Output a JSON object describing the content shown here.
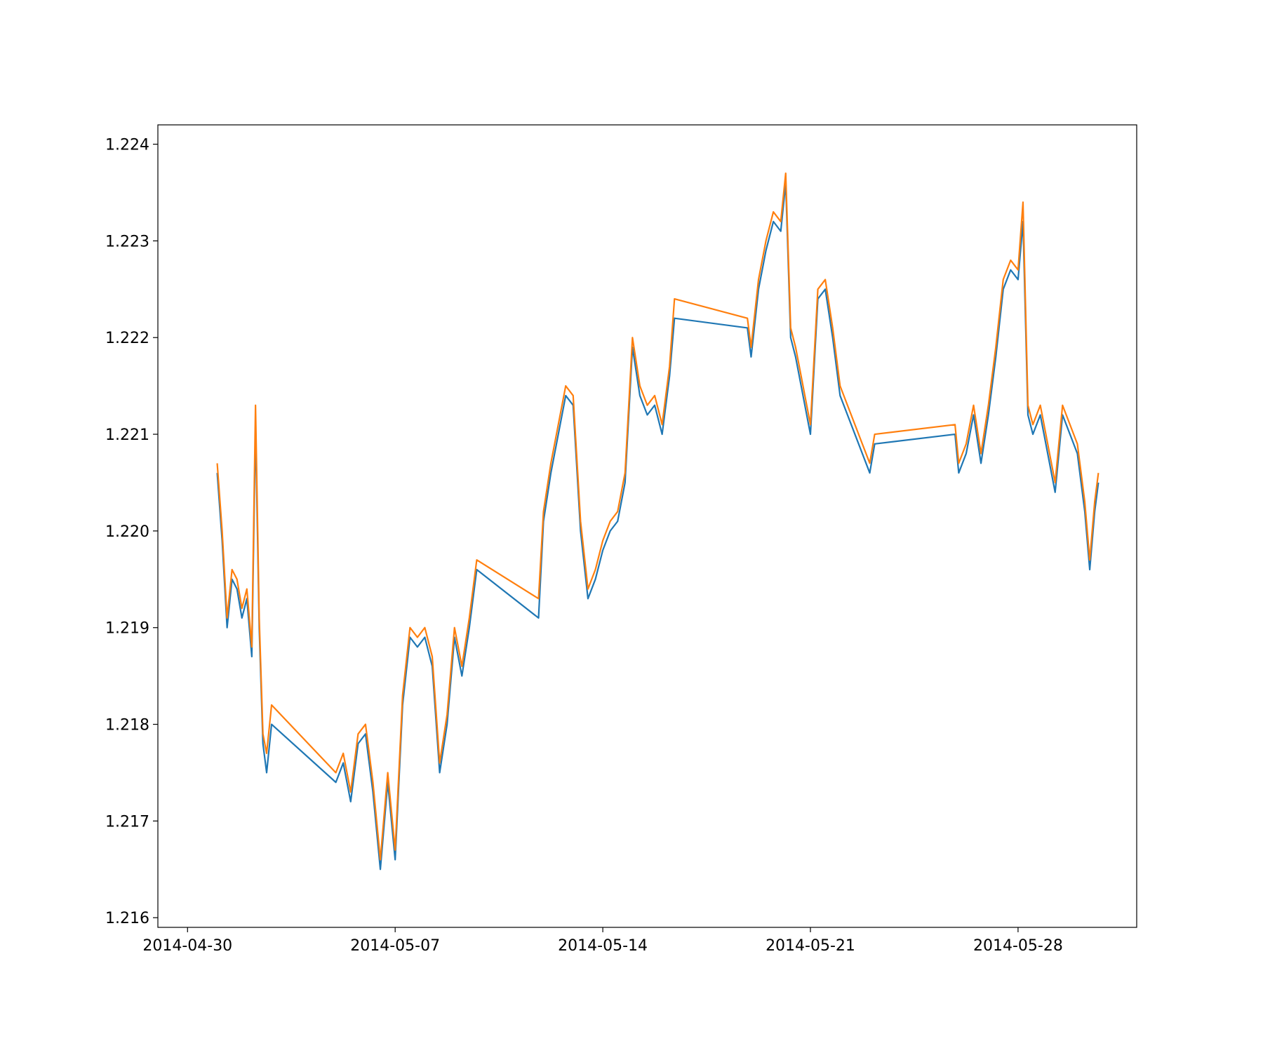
{
  "chart_data": {
    "type": "line",
    "title": "",
    "xlabel": "",
    "ylabel": "",
    "x_range": [
      "2014-04-29",
      "2014-06-01"
    ],
    "ylim": [
      1.2159,
      1.2242
    ],
    "x_ticks": [
      "2014-04-30",
      "2014-05-07",
      "2014-05-14",
      "2014-05-21",
      "2014-05-28"
    ],
    "y_ticks": [
      "1.216",
      "1.217",
      "1.218",
      "1.219",
      "1.220",
      "1.221",
      "1.222",
      "1.223",
      "1.224"
    ],
    "grid": false,
    "legend": "none",
    "series": [
      {
        "color": "#1f77b4",
        "points": [
          [
            "2014-05-01T00:00",
            1.2206
          ],
          [
            "2014-05-01T04:00",
            1.2199
          ],
          [
            "2014-05-01T08:00",
            1.219
          ],
          [
            "2014-05-01T12:00",
            1.2195
          ],
          [
            "2014-05-01T16:00",
            1.2194
          ],
          [
            "2014-05-01T20:00",
            1.2191
          ],
          [
            "2014-05-02T00:00",
            1.2193
          ],
          [
            "2014-05-02T04:00",
            1.2187
          ],
          [
            "2014-05-02T07:00",
            1.2211
          ],
          [
            "2014-05-02T10:00",
            1.219
          ],
          [
            "2014-05-02T13:00",
            1.2178
          ],
          [
            "2014-05-02T16:00",
            1.2175
          ],
          [
            "2014-05-02T20:00",
            1.218
          ],
          [
            "2014-05-05T00:00",
            1.2174
          ],
          [
            "2014-05-05T06:00",
            1.2176
          ],
          [
            "2014-05-05T12:00",
            1.2172
          ],
          [
            "2014-05-05T18:00",
            1.2178
          ],
          [
            "2014-05-06T00:00",
            1.2179
          ],
          [
            "2014-05-06T06:00",
            1.2173
          ],
          [
            "2014-05-06T12:00",
            1.2165
          ],
          [
            "2014-05-06T18:00",
            1.2174
          ],
          [
            "2014-05-07T00:00",
            1.2166
          ],
          [
            "2014-05-07T06:00",
            1.2182
          ],
          [
            "2014-05-07T12:00",
            1.2189
          ],
          [
            "2014-05-07T18:00",
            1.2188
          ],
          [
            "2014-05-08T00:00",
            1.2189
          ],
          [
            "2014-05-08T06:00",
            1.2186
          ],
          [
            "2014-05-08T12:00",
            1.2175
          ],
          [
            "2014-05-08T18:00",
            1.218
          ],
          [
            "2014-05-09T00:00",
            1.2189
          ],
          [
            "2014-05-09T06:00",
            1.2185
          ],
          [
            "2014-05-09T12:00",
            1.219
          ],
          [
            "2014-05-09T18:00",
            1.2196
          ],
          [
            "2014-05-11T20:00",
            1.2191
          ],
          [
            "2014-05-12T00:00",
            1.2201
          ],
          [
            "2014-05-12T06:00",
            1.2206
          ],
          [
            "2014-05-12T12:00",
            1.221
          ],
          [
            "2014-05-12T18:00",
            1.2214
          ],
          [
            "2014-05-13T00:00",
            1.2213
          ],
          [
            "2014-05-13T06:00",
            1.22
          ],
          [
            "2014-05-13T12:00",
            1.2193
          ],
          [
            "2014-05-13T18:00",
            1.2195
          ],
          [
            "2014-05-14T00:00",
            1.2198
          ],
          [
            "2014-05-14T06:00",
            1.22
          ],
          [
            "2014-05-14T12:00",
            1.2201
          ],
          [
            "2014-05-14T18:00",
            1.2205
          ],
          [
            "2014-05-15T00:00",
            1.2219
          ],
          [
            "2014-05-15T06:00",
            1.2214
          ],
          [
            "2014-05-15T12:00",
            1.2212
          ],
          [
            "2014-05-15T18:00",
            1.2213
          ],
          [
            "2014-05-16T00:00",
            1.221
          ],
          [
            "2014-05-16T06:00",
            1.2216
          ],
          [
            "2014-05-16T10:00",
            1.2222
          ],
          [
            "2014-05-18T21:00",
            1.2221
          ],
          [
            "2014-05-19T00:00",
            1.2218
          ],
          [
            "2014-05-19T06:00",
            1.2225
          ],
          [
            "2014-05-19T12:00",
            1.2229
          ],
          [
            "2014-05-19T18:00",
            1.2232
          ],
          [
            "2014-05-20T00:00",
            1.2231
          ],
          [
            "2014-05-20T04:00",
            1.2236
          ],
          [
            "2014-05-20T08:00",
            1.222
          ],
          [
            "2014-05-20T12:00",
            1.2218
          ],
          [
            "2014-05-20T18:00",
            1.2214
          ],
          [
            "2014-05-21T00:00",
            1.221
          ],
          [
            "2014-05-21T06:00",
            1.2224
          ],
          [
            "2014-05-21T12:00",
            1.2225
          ],
          [
            "2014-05-21T18:00",
            1.222
          ],
          [
            "2014-05-22T00:00",
            1.2214
          ],
          [
            "2014-05-22T06:00",
            1.2212
          ],
          [
            "2014-05-22T12:00",
            1.221
          ],
          [
            "2014-05-22T18:00",
            1.2208
          ],
          [
            "2014-05-23T00:00",
            1.2206
          ],
          [
            "2014-05-23T04:00",
            1.2209
          ],
          [
            "2014-05-25T21:00",
            1.221
          ],
          [
            "2014-05-26T00:00",
            1.2206
          ],
          [
            "2014-05-26T06:00",
            1.2208
          ],
          [
            "2014-05-26T12:00",
            1.2212
          ],
          [
            "2014-05-26T18:00",
            1.2207
          ],
          [
            "2014-05-27T00:00",
            1.2212
          ],
          [
            "2014-05-27T06:00",
            1.2218
          ],
          [
            "2014-05-27T12:00",
            1.2225
          ],
          [
            "2014-05-27T18:00",
            1.2227
          ],
          [
            "2014-05-28T00:00",
            1.2226
          ],
          [
            "2014-05-28T04:00",
            1.2232
          ],
          [
            "2014-05-28T08:00",
            1.2212
          ],
          [
            "2014-05-28T12:00",
            1.221
          ],
          [
            "2014-05-28T18:00",
            1.2212
          ],
          [
            "2014-05-29T00:00",
            1.2208
          ],
          [
            "2014-05-29T06:00",
            1.2204
          ],
          [
            "2014-05-29T12:00",
            1.2212
          ],
          [
            "2014-05-29T18:00",
            1.221
          ],
          [
            "2014-05-30T00:00",
            1.2208
          ],
          [
            "2014-05-30T06:00",
            1.2202
          ],
          [
            "2014-05-30T10:00",
            1.2196
          ],
          [
            "2014-05-30T14:00",
            1.2202
          ],
          [
            "2014-05-30T17:00",
            1.2205
          ]
        ]
      },
      {
        "color": "#ff7f0e",
        "points": [
          [
            "2014-05-01T00:00",
            1.2207
          ],
          [
            "2014-05-01T04:00",
            1.22
          ],
          [
            "2014-05-01T08:00",
            1.2191
          ],
          [
            "2014-05-01T12:00",
            1.2196
          ],
          [
            "2014-05-01T16:00",
            1.2195
          ],
          [
            "2014-05-01T20:00",
            1.2192
          ],
          [
            "2014-05-02T00:00",
            1.2194
          ],
          [
            "2014-05-02T04:00",
            1.2188
          ],
          [
            "2014-05-02T07:00",
            1.2213
          ],
          [
            "2014-05-02T10:00",
            1.2191
          ],
          [
            "2014-05-02T13:00",
            1.2179
          ],
          [
            "2014-05-02T16:00",
            1.2177
          ],
          [
            "2014-05-02T20:00",
            1.2182
          ],
          [
            "2014-05-05T00:00",
            1.2175
          ],
          [
            "2014-05-05T06:00",
            1.2177
          ],
          [
            "2014-05-05T12:00",
            1.2173
          ],
          [
            "2014-05-05T18:00",
            1.2179
          ],
          [
            "2014-05-06T00:00",
            1.218
          ],
          [
            "2014-05-06T06:00",
            1.2174
          ],
          [
            "2014-05-06T12:00",
            1.2166
          ],
          [
            "2014-05-06T18:00",
            1.2175
          ],
          [
            "2014-05-07T00:00",
            1.2167
          ],
          [
            "2014-05-07T06:00",
            1.2183
          ],
          [
            "2014-05-07T12:00",
            1.219
          ],
          [
            "2014-05-07T18:00",
            1.2189
          ],
          [
            "2014-05-08T00:00",
            1.219
          ],
          [
            "2014-05-08T06:00",
            1.2187
          ],
          [
            "2014-05-08T12:00",
            1.2176
          ],
          [
            "2014-05-08T18:00",
            1.2181
          ],
          [
            "2014-05-09T00:00",
            1.219
          ],
          [
            "2014-05-09T06:00",
            1.2186
          ],
          [
            "2014-05-09T12:00",
            1.2191
          ],
          [
            "2014-05-09T18:00",
            1.2197
          ],
          [
            "2014-05-11T20:00",
            1.2193
          ],
          [
            "2014-05-12T00:00",
            1.2202
          ],
          [
            "2014-05-12T06:00",
            1.2207
          ],
          [
            "2014-05-12T12:00",
            1.2211
          ],
          [
            "2014-05-12T18:00",
            1.2215
          ],
          [
            "2014-05-13T00:00",
            1.2214
          ],
          [
            "2014-05-13T06:00",
            1.2201
          ],
          [
            "2014-05-13T12:00",
            1.2194
          ],
          [
            "2014-05-13T18:00",
            1.2196
          ],
          [
            "2014-05-14T00:00",
            1.2199
          ],
          [
            "2014-05-14T06:00",
            1.2201
          ],
          [
            "2014-05-14T12:00",
            1.2202
          ],
          [
            "2014-05-14T18:00",
            1.2206
          ],
          [
            "2014-05-15T00:00",
            1.222
          ],
          [
            "2014-05-15T06:00",
            1.2215
          ],
          [
            "2014-05-15T12:00",
            1.2213
          ],
          [
            "2014-05-15T18:00",
            1.2214
          ],
          [
            "2014-05-16T00:00",
            1.2211
          ],
          [
            "2014-05-16T06:00",
            1.2217
          ],
          [
            "2014-05-16T10:00",
            1.2224
          ],
          [
            "2014-05-18T21:00",
            1.2222
          ],
          [
            "2014-05-19T00:00",
            1.2219
          ],
          [
            "2014-05-19T06:00",
            1.2226
          ],
          [
            "2014-05-19T12:00",
            1.223
          ],
          [
            "2014-05-19T18:00",
            1.2233
          ],
          [
            "2014-05-20T00:00",
            1.2232
          ],
          [
            "2014-05-20T04:00",
            1.2237
          ],
          [
            "2014-05-20T08:00",
            1.2221
          ],
          [
            "2014-05-20T12:00",
            1.2219
          ],
          [
            "2014-05-20T18:00",
            1.2215
          ],
          [
            "2014-05-21T00:00",
            1.2211
          ],
          [
            "2014-05-21T06:00",
            1.2225
          ],
          [
            "2014-05-21T12:00",
            1.2226
          ],
          [
            "2014-05-21T18:00",
            1.2221
          ],
          [
            "2014-05-22T00:00",
            1.2215
          ],
          [
            "2014-05-22T06:00",
            1.2213
          ],
          [
            "2014-05-22T12:00",
            1.2211
          ],
          [
            "2014-05-22T18:00",
            1.2209
          ],
          [
            "2014-05-23T00:00",
            1.2207
          ],
          [
            "2014-05-23T04:00",
            1.221
          ],
          [
            "2014-05-25T21:00",
            1.2211
          ],
          [
            "2014-05-26T00:00",
            1.2207
          ],
          [
            "2014-05-26T06:00",
            1.2209
          ],
          [
            "2014-05-26T12:00",
            1.2213
          ],
          [
            "2014-05-26T18:00",
            1.2208
          ],
          [
            "2014-05-27T00:00",
            1.2213
          ],
          [
            "2014-05-27T06:00",
            1.2219
          ],
          [
            "2014-05-27T12:00",
            1.2226
          ],
          [
            "2014-05-27T18:00",
            1.2228
          ],
          [
            "2014-05-28T00:00",
            1.2227
          ],
          [
            "2014-05-28T04:00",
            1.2234
          ],
          [
            "2014-05-28T08:00",
            1.2213
          ],
          [
            "2014-05-28T12:00",
            1.2211
          ],
          [
            "2014-05-28T18:00",
            1.2213
          ],
          [
            "2014-05-29T00:00",
            1.2209
          ],
          [
            "2014-05-29T06:00",
            1.2205
          ],
          [
            "2014-05-29T12:00",
            1.2213
          ],
          [
            "2014-05-29T18:00",
            1.2211
          ],
          [
            "2014-05-30T00:00",
            1.2209
          ],
          [
            "2014-05-30T06:00",
            1.2203
          ],
          [
            "2014-05-30T10:00",
            1.2197
          ],
          [
            "2014-05-30T14:00",
            1.2203
          ],
          [
            "2014-05-30T17:00",
            1.2206
          ]
        ]
      }
    ]
  }
}
